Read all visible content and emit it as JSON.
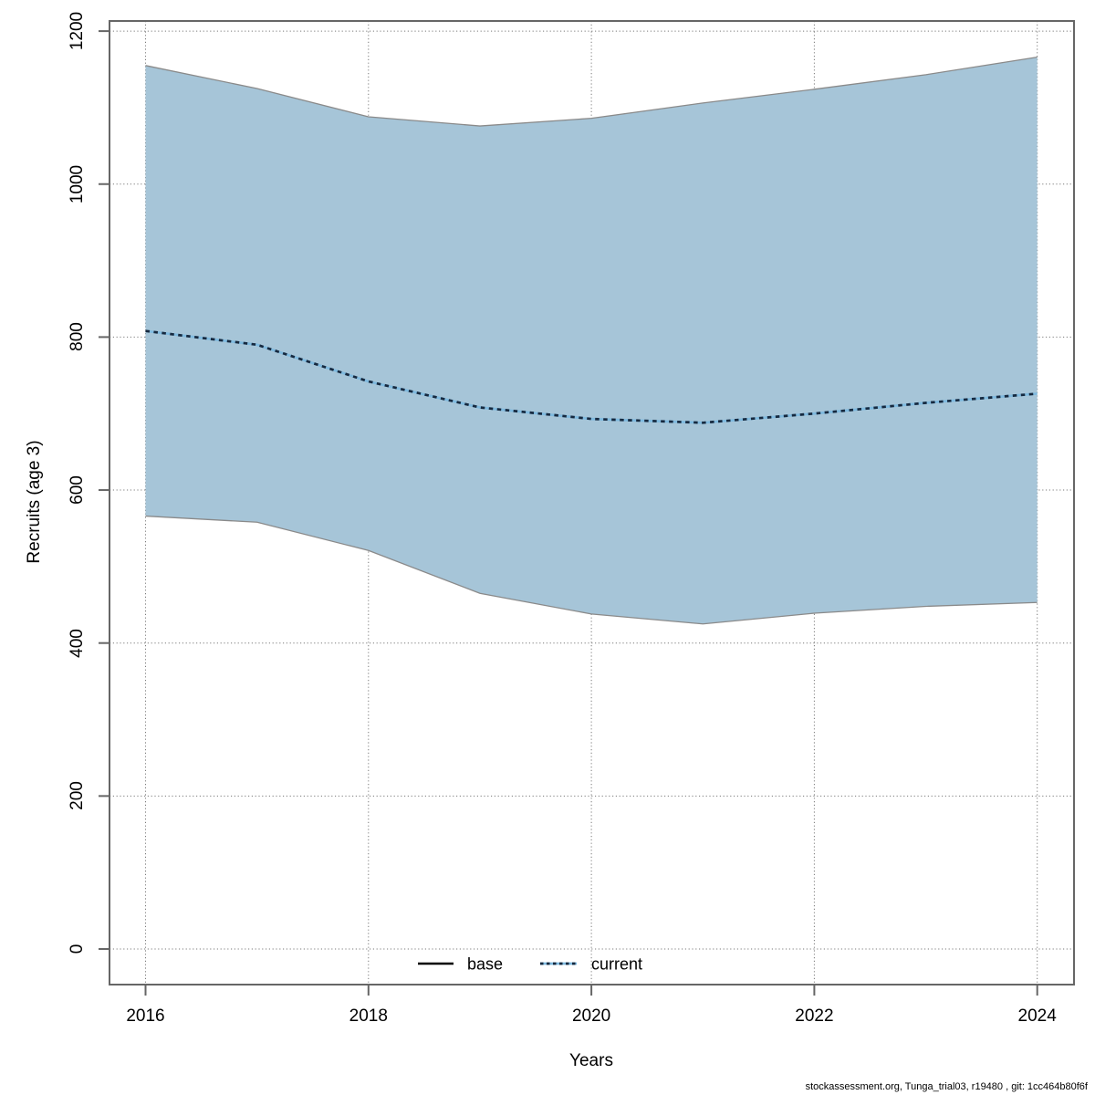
{
  "figure": {
    "footer": "stockassessment.org, Tunga_trial03, r19480 , git: 1cc464b80f6f"
  },
  "legend": {
    "position": "bottom-center-inside",
    "items": [
      {
        "label": "base",
        "line_style": "solid",
        "color": "#000000"
      },
      {
        "label": "current",
        "line_style": "dotted",
        "color": "#16293f",
        "underlay_color": "#7fbadf"
      }
    ]
  },
  "chart_data": {
    "type": "line",
    "title": "",
    "xlabel": "Years",
    "ylabel": "Recruits (age 3)",
    "x": [
      2016,
      2017,
      2018,
      2019,
      2020,
      2021,
      2022,
      2023,
      2024
    ],
    "series": [
      {
        "name": "current",
        "style": "dotted",
        "values": [
          808,
          790,
          742,
          708,
          693,
          688,
          700,
          714,
          726
        ]
      }
    ],
    "band": {
      "name": "base-confidence-interval",
      "upper": [
        1155,
        1125,
        1088,
        1076,
        1086,
        1106,
        1124,
        1143,
        1166
      ],
      "lower": [
        566,
        558,
        521,
        465,
        438,
        425,
        439,
        448,
        453
      ]
    },
    "xticks": [
      2016,
      2018,
      2020,
      2022,
      2024
    ],
    "yticks": [
      0,
      200,
      400,
      600,
      800,
      1000,
      1200
    ],
    "xlim": [
      2016,
      2024
    ],
    "ylim": [
      0,
      1200
    ],
    "grid": "dotted",
    "legend_position": "bottom-center",
    "colors": {
      "band_fill": "#a6c5d8",
      "band_edge": "#8a8a8a",
      "current_underlay": "#7fbadf",
      "current_dash": "#16293f",
      "base_line": "#000000",
      "grid": "#7a7a7a",
      "axis": "#666666",
      "text": "#000000"
    }
  }
}
